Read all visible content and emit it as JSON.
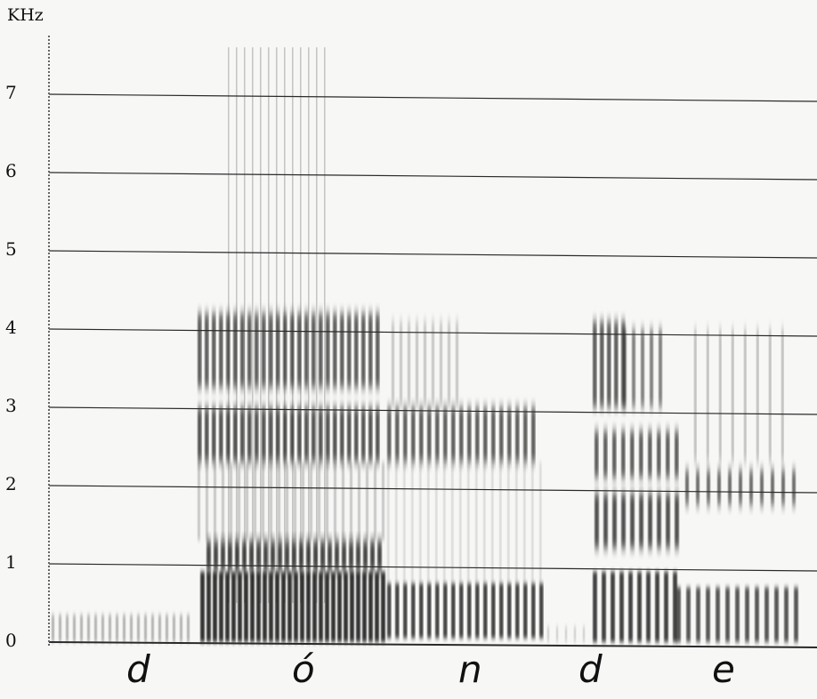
{
  "chart_data": {
    "type": "spectrogram",
    "ylabel": "KHz",
    "ylim": [
      0,
      7.6
    ],
    "yticks": [
      0,
      1,
      2,
      3,
      4,
      5,
      6,
      7
    ],
    "grid": true,
    "segments": [
      "d",
      "ó",
      "n",
      "d",
      "e"
    ],
    "colors": {
      "ink": "#1a1a1a",
      "grid": "#2a2a2a",
      "paper": "#f7f7f5"
    }
  }
}
